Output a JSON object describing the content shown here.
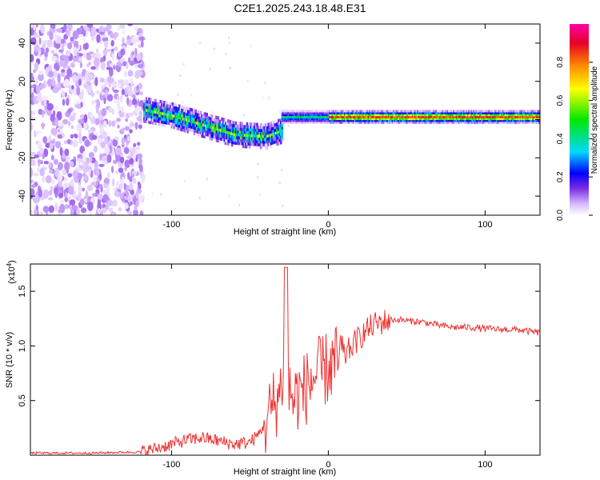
{
  "page_title": "C2E1.2025.243.18.48.E31",
  "chart_data": [
    {
      "type": "heatmap",
      "title": "C2E1.2025.243.18.48.E31",
      "xlabel": "Height of straight line (km)",
      "ylabel": "Frequency (Hz)",
      "xlim": [
        -190,
        135
      ],
      "ylim": [
        -50,
        50
      ],
      "xticks": [
        -100,
        0,
        100
      ],
      "yticks": [
        -40,
        -20,
        0,
        20,
        40
      ],
      "colorbar": {
        "label": "Normalized spectral amplitude",
        "range": [
          0,
          1
        ],
        "ticks": [
          0.0,
          0.2,
          0.4,
          0.6,
          0.8
        ],
        "colormap": [
          "#ffffff",
          "#d6b8ff",
          "#7a2de0",
          "#0000ff",
          "#00d8ff",
          "#00e800",
          "#ffff00",
          "#ff8c00",
          "#e60026",
          "#ff00aa"
        ]
      },
      "regions": [
        {
          "name": "noise",
          "x_range": [
            -190,
            -118
          ],
          "y_range": [
            -50,
            50
          ],
          "amplitude": 0.15
        },
        {
          "name": "descending-track",
          "x": [
            -118,
            -100,
            -80,
            -60,
            -40,
            -30
          ],
          "y": [
            6,
            3,
            -2,
            -7,
            -8,
            -5
          ],
          "amplitude": 0.55
        },
        {
          "name": "flat-track",
          "x_range": [
            -30,
            135
          ],
          "y": 2,
          "amplitude": 0.85
        }
      ]
    },
    {
      "type": "line",
      "xlabel": "Height of straight line (km)",
      "ylabel": "SNR (10 * v/v)",
      "multiplier": "(x10",
      "multiplier_exp": "4",
      "xlim": [
        -190,
        135
      ],
      "ylim": [
        0,
        1.75
      ],
      "xticks": [
        -100,
        0,
        100
      ],
      "yticks": [
        0.5,
        1.0,
        1.5
      ],
      "color": "#f03030",
      "series": [
        {
          "name": "SNR",
          "x": [
            -190,
            -150,
            -120,
            -110,
            -100,
            -90,
            -80,
            -70,
            -60,
            -50,
            -45,
            -40,
            -35,
            -30,
            -28,
            -27,
            -25,
            -22,
            -20,
            -15,
            -10,
            -5,
            0,
            5,
            10,
            15,
            20,
            25,
            30,
            35,
            40,
            45,
            50,
            60,
            70,
            80,
            90,
            100,
            110,
            120,
            130,
            135
          ],
          "y": [
            0.02,
            0.02,
            0.03,
            0.06,
            0.1,
            0.14,
            0.16,
            0.13,
            0.1,
            0.12,
            0.18,
            0.3,
            0.45,
            0.6,
            1.0,
            1.7,
            0.6,
            0.5,
            0.55,
            0.6,
            0.7,
            0.75,
            0.8,
            0.85,
            0.9,
            1.0,
            1.08,
            1.15,
            1.2,
            1.22,
            1.24,
            1.24,
            1.23,
            1.22,
            1.19,
            1.17,
            1.17,
            1.16,
            1.15,
            1.15,
            1.13,
            1.12
          ]
        }
      ]
    }
  ]
}
